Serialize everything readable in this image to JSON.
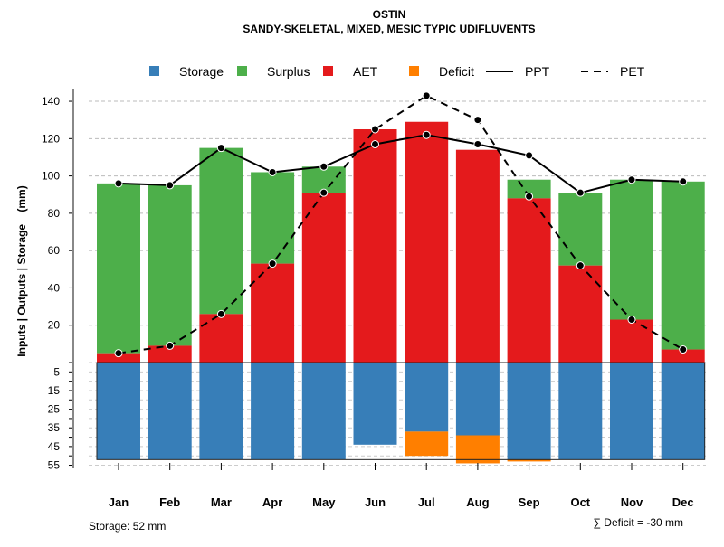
{
  "chart_data": {
    "type": "bar",
    "title": "OSTIN",
    "subtitle": "SANDY-SKELETAL, MIXED, MESIC TYPIC UDIFLUVENTS",
    "ylabel": "Inputs | Outputs | Storage    (mm)",
    "categories": [
      "Jan",
      "Feb",
      "Mar",
      "Apr",
      "May",
      "Jun",
      "Jul",
      "Aug",
      "Sep",
      "Oct",
      "Nov",
      "Dec"
    ],
    "upper_ticks": [
      20,
      40,
      60,
      80,
      100,
      120,
      140
    ],
    "lower_ticks": [
      5,
      15,
      25,
      35,
      45,
      55
    ],
    "ylim_upper": [
      0,
      150
    ],
    "ylim_lower": [
      0,
      55
    ],
    "legend": [
      "Storage",
      "Surplus",
      "AET",
      "Deficit",
      "PPT",
      "PET"
    ],
    "colors": {
      "Storage": "#377EB8",
      "Surplus": "#4DAF4A",
      "AET": "#E41A1C",
      "Deficit": "#FF7F00"
    },
    "series": [
      {
        "name": "AET",
        "values": [
          5,
          9,
          26,
          53,
          91,
          125,
          129,
          114,
          88,
          52,
          23,
          7
        ]
      },
      {
        "name": "Surplus",
        "values": [
          91,
          86,
          89,
          49,
          14,
          0,
          0,
          0,
          10,
          39,
          75,
          90
        ]
      },
      {
        "name": "Storage",
        "values": [
          52,
          52,
          52,
          52,
          52,
          44,
          37,
          39,
          52,
          52,
          52,
          52
        ]
      },
      {
        "name": "Deficit",
        "values": [
          0,
          0,
          0,
          0,
          0,
          0,
          13,
          15,
          1,
          0,
          0,
          0
        ]
      },
      {
        "name": "PPT",
        "values": [
          96,
          95,
          115,
          102,
          105,
          117,
          122,
          117,
          111,
          91,
          98,
          97
        ]
      },
      {
        "name": "PET",
        "values": [
          5,
          9,
          26,
          53,
          91,
          125,
          143,
          130,
          89,
          52,
          23,
          7
        ]
      }
    ],
    "storage_note": "Storage: 52 mm",
    "deficit_note": "∑ Deficit = -30 mm"
  }
}
